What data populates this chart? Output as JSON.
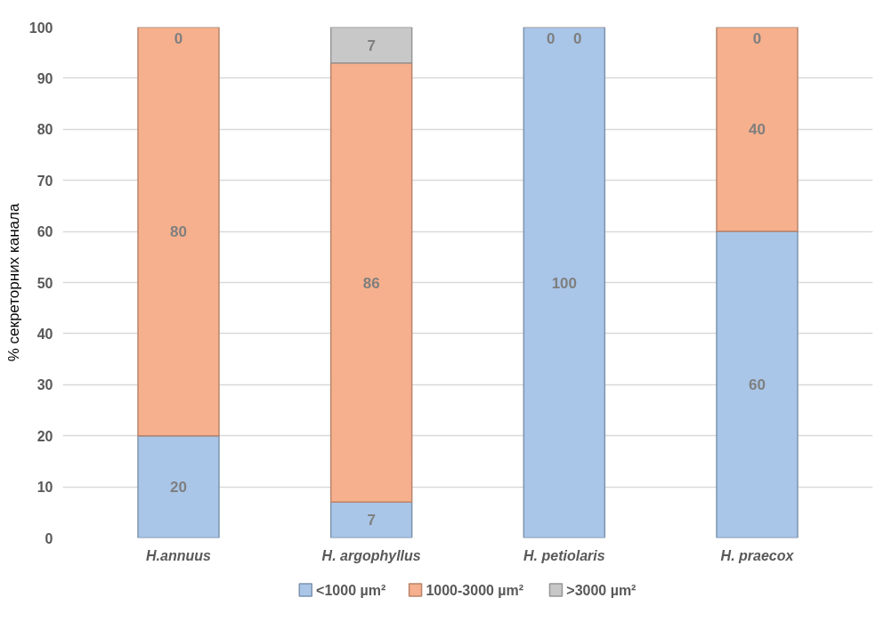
{
  "chart_data": {
    "type": "bar",
    "stacked": true,
    "ylabel": "% секреторних канала",
    "categories": [
      "H.annuus",
      "H. argophyllus",
      "H. petiolaris",
      "H. praecox"
    ],
    "series": [
      {
        "name": "<1000 µm²",
        "color": "#a9c6e8",
        "values": [
          20,
          7,
          100,
          60
        ]
      },
      {
        "name": "1000-3000 µm²",
        "color": "#f6b08e",
        "values": [
          80,
          86,
          0,
          40
        ]
      },
      {
        "name": ">3000 µm²",
        "color": "#c8c8c8",
        "values": [
          0,
          7,
          0,
          0
        ]
      }
    ],
    "ylim": [
      0,
      100
    ],
    "yticks": [
      0,
      10,
      20,
      30,
      40,
      50,
      60,
      70,
      80,
      90,
      100
    ],
    "grid": "y",
    "legend": "bottom",
    "data_labels": true
  }
}
